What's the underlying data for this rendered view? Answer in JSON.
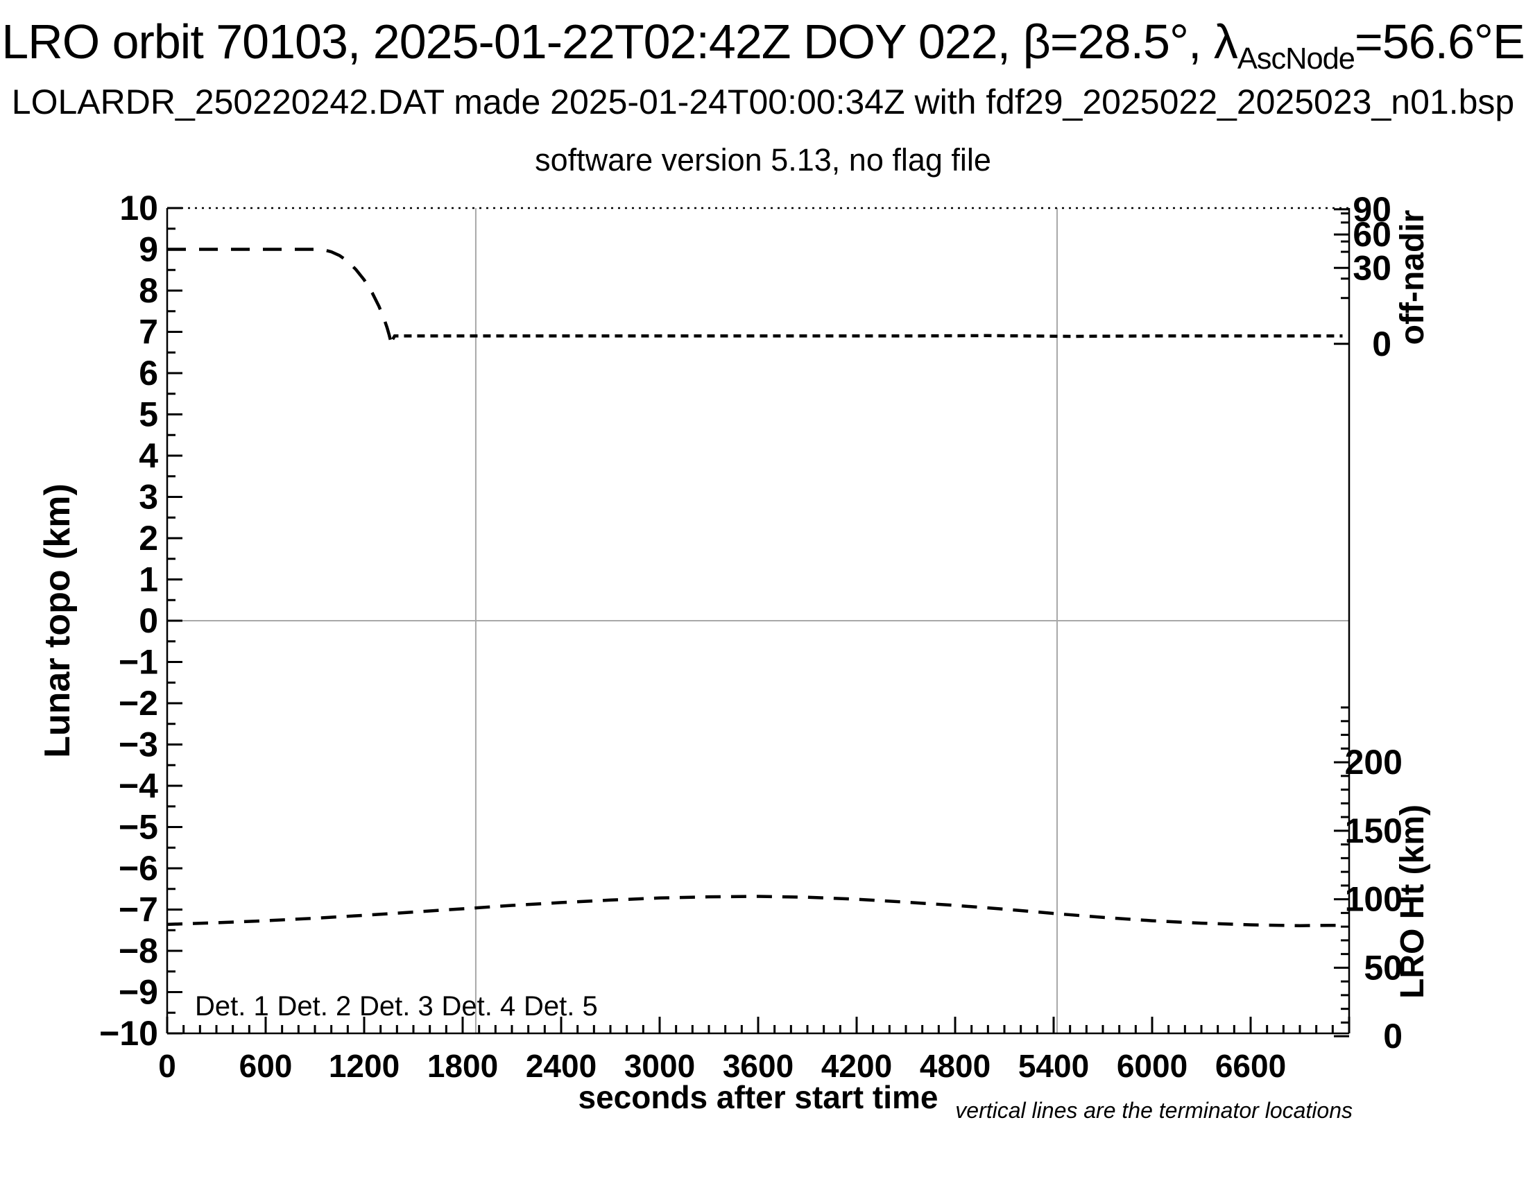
{
  "titles": {
    "main_pre": "LRO orbit 70103, 2025-01-22T02:42Z DOY 022, β=28.5°, λ",
    "main_sub": "AscNode",
    "main_post": "=56.6°E",
    "line2": "LOLARDR_250220242.DAT made 2025-01-24T00:00:34Z with fdf29_2025022_2025023_n01.bsp",
    "line3": "software version 5.13, no flag file"
  },
  "chart_data": {
    "type": "line",
    "title": "LRO orbit 70103, 2025-01-22T02:42Z DOY 022, β=28.5°, λAscNode=56.6°E",
    "subtitle": "LOLARDR_250220242.DAT made 2025-01-24T00:00:34Z with fdf29_2025022_2025023_n01.bsp",
    "subtitle2": "software version 5.13, no flag file",
    "xlabel": "seconds after start time",
    "ylabel_left": "Lunar topo (km)",
    "ylabel_right_top": "off-nadir",
    "ylabel_right_bottom": "LRO Ht (km)",
    "note": "vertical lines are the terminator locations",
    "xlim": [
      0,
      7200
    ],
    "ylim_left": [
      -10,
      10
    ],
    "x_major_step": 600,
    "x_minor_step": 100,
    "x_label_max": 6600,
    "y_major_step": 1,
    "y_minor_step": 0.5,
    "grid_y_zero": 0,
    "terminator_lines_s": [
      1880,
      5421
    ],
    "offnadir_axis": {
      "majors": [
        {
          "deg": "90",
          "v": 9.97
        },
        {
          "deg": "60",
          "v": 9.36
        },
        {
          "deg": "30",
          "v": 8.55
        },
        {
          "deg": "0",
          "v": 6.71
        }
      ],
      "minors_v": [
        9.87,
        9.65,
        9.19,
        8.94,
        8.29,
        7.82
      ]
    },
    "lroht_axis": {
      "v_at_0km": -10.07,
      "v_per_km": 0.0332,
      "majors": [
        0,
        50,
        100,
        150,
        200
      ],
      "minor_step_km": 10,
      "minor_max_km": 240
    },
    "series": [
      {
        "name": "off-nadir angle",
        "axis": "off-nadir",
        "color": "#000000",
        "style": "dashed",
        "slew_end_s": 1374,
        "points": [
          [
            0,
            9.0
          ],
          [
            150,
            9.0
          ],
          [
            300,
            9.0
          ],
          [
            450,
            9.0
          ],
          [
            600,
            9.0
          ],
          [
            750,
            9.0
          ],
          [
            900,
            9.0
          ],
          [
            950,
            8.99
          ],
          [
            1000,
            8.94
          ],
          [
            1050,
            8.85
          ],
          [
            1100,
            8.71
          ],
          [
            1150,
            8.51
          ],
          [
            1200,
            8.26
          ],
          [
            1250,
            7.94
          ],
          [
            1290,
            7.62
          ],
          [
            1320,
            7.33
          ],
          [
            1340,
            7.1
          ],
          [
            1352,
            6.93
          ],
          [
            1360,
            6.8
          ],
          [
            1366,
            6.67
          ],
          [
            1374,
            6.82
          ],
          [
            1386,
            6.9
          ],
          [
            1500,
            6.9
          ],
          [
            2000,
            6.9
          ],
          [
            2500,
            6.9
          ],
          [
            3000,
            6.9
          ],
          [
            3500,
            6.9
          ],
          [
            4000,
            6.9
          ],
          [
            4500,
            6.9
          ],
          [
            5000,
            6.91
          ],
          [
            5500,
            6.89
          ],
          [
            6000,
            6.9
          ],
          [
            6500,
            6.9
          ],
          [
            7000,
            6.9
          ],
          [
            7160,
            6.9
          ]
        ]
      },
      {
        "name": "LRO height",
        "axis": "lro-ht",
        "color": "#000000",
        "style": "dashed",
        "points": [
          [
            0,
            -7.36
          ],
          [
            300,
            -7.32
          ],
          [
            600,
            -7.27
          ],
          [
            900,
            -7.21
          ],
          [
            1200,
            -7.14
          ],
          [
            1500,
            -7.06
          ],
          [
            1880,
            -6.96
          ],
          [
            2100,
            -6.9
          ],
          [
            2400,
            -6.83
          ],
          [
            2700,
            -6.77
          ],
          [
            3000,
            -6.72
          ],
          [
            3300,
            -6.69
          ],
          [
            3600,
            -6.68
          ],
          [
            3900,
            -6.7
          ],
          [
            4200,
            -6.75
          ],
          [
            4500,
            -6.82
          ],
          [
            4800,
            -6.9
          ],
          [
            5100,
            -6.99
          ],
          [
            5421,
            -7.1
          ],
          [
            5700,
            -7.19
          ],
          [
            6000,
            -7.27
          ],
          [
            6300,
            -7.33
          ],
          [
            6600,
            -7.37
          ],
          [
            6900,
            -7.39
          ],
          [
            7160,
            -7.38
          ]
        ]
      }
    ],
    "legend": [
      {
        "label": "Det. 1",
        "color": "#000000"
      },
      {
        "label": "Det. 2",
        "color": "#0000ff"
      },
      {
        "label": "Det. 3",
        "color": "#00dd00"
      },
      {
        "label": "Det. 4",
        "color": "#ffa500"
      },
      {
        "label": "Det. 5",
        "color": "#ff0000"
      }
    ],
    "colors": {
      "terminator_line": "#a8a8a8",
      "zero_line": "#a8a8a8",
      "curve": "#000000"
    }
  }
}
